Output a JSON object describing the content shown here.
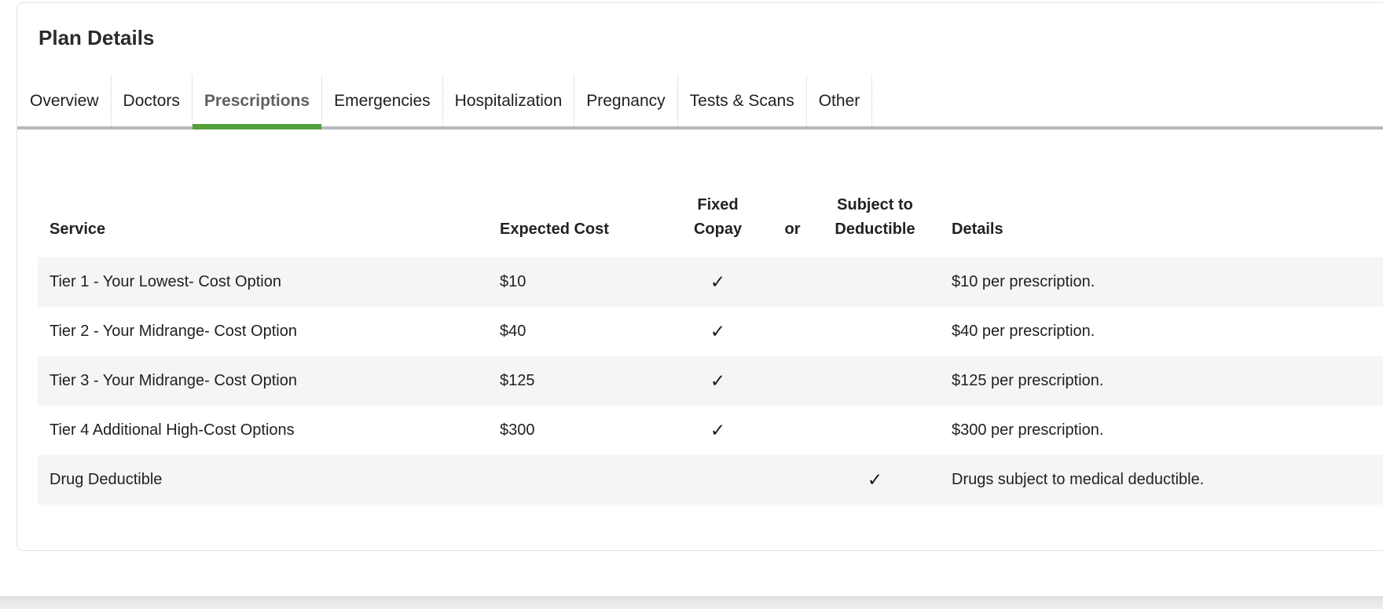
{
  "card": {
    "title": "Plan Details"
  },
  "tabs": [
    {
      "label": "Overview",
      "active": false
    },
    {
      "label": "Doctors",
      "active": false
    },
    {
      "label": "Prescriptions",
      "active": true
    },
    {
      "label": "Emergencies",
      "active": false
    },
    {
      "label": "Hospitalization",
      "active": false
    },
    {
      "label": "Pregnancy",
      "active": false
    },
    {
      "label": "Tests & Scans",
      "active": false
    },
    {
      "label": "Other",
      "active": false
    }
  ],
  "table": {
    "headers": {
      "service": "Service",
      "expected_cost": "Expected Cost",
      "fixed_copay": [
        "Fixed",
        "Copay"
      ],
      "conjunction": "or",
      "subject_to_deductible": [
        "Subject to",
        "Deductible"
      ],
      "details": "Details"
    },
    "rows": [
      {
        "service": "Tier 1 - Your Lowest- Cost Option",
        "expected_cost": "$10",
        "fixed_copay": "✓",
        "subject_to_deductible": "",
        "details": "$10 per prescription."
      },
      {
        "service": "Tier 2 - Your Midrange- Cost Option",
        "expected_cost": "$40",
        "fixed_copay": "✓",
        "subject_to_deductible": "",
        "details": "$40 per prescription."
      },
      {
        "service": "Tier 3 - Your Midrange- Cost Option",
        "expected_cost": "$125",
        "fixed_copay": "✓",
        "subject_to_deductible": "",
        "details": "$125 per prescription."
      },
      {
        "service": "Tier 4 Additional High-Cost Options",
        "expected_cost": "$300",
        "fixed_copay": "✓",
        "subject_to_deductible": "",
        "details": "$300 per prescription."
      },
      {
        "service": "Drug Deductible",
        "expected_cost": "",
        "fixed_copay": "",
        "subject_to_deductible": "✓",
        "details": "Drugs subject to medical deductible."
      }
    ]
  },
  "colors": {
    "accent_green": "#55a03c",
    "tab_rule_gray": "#b7b9c1",
    "row_stripe": "#f5f5f5"
  }
}
